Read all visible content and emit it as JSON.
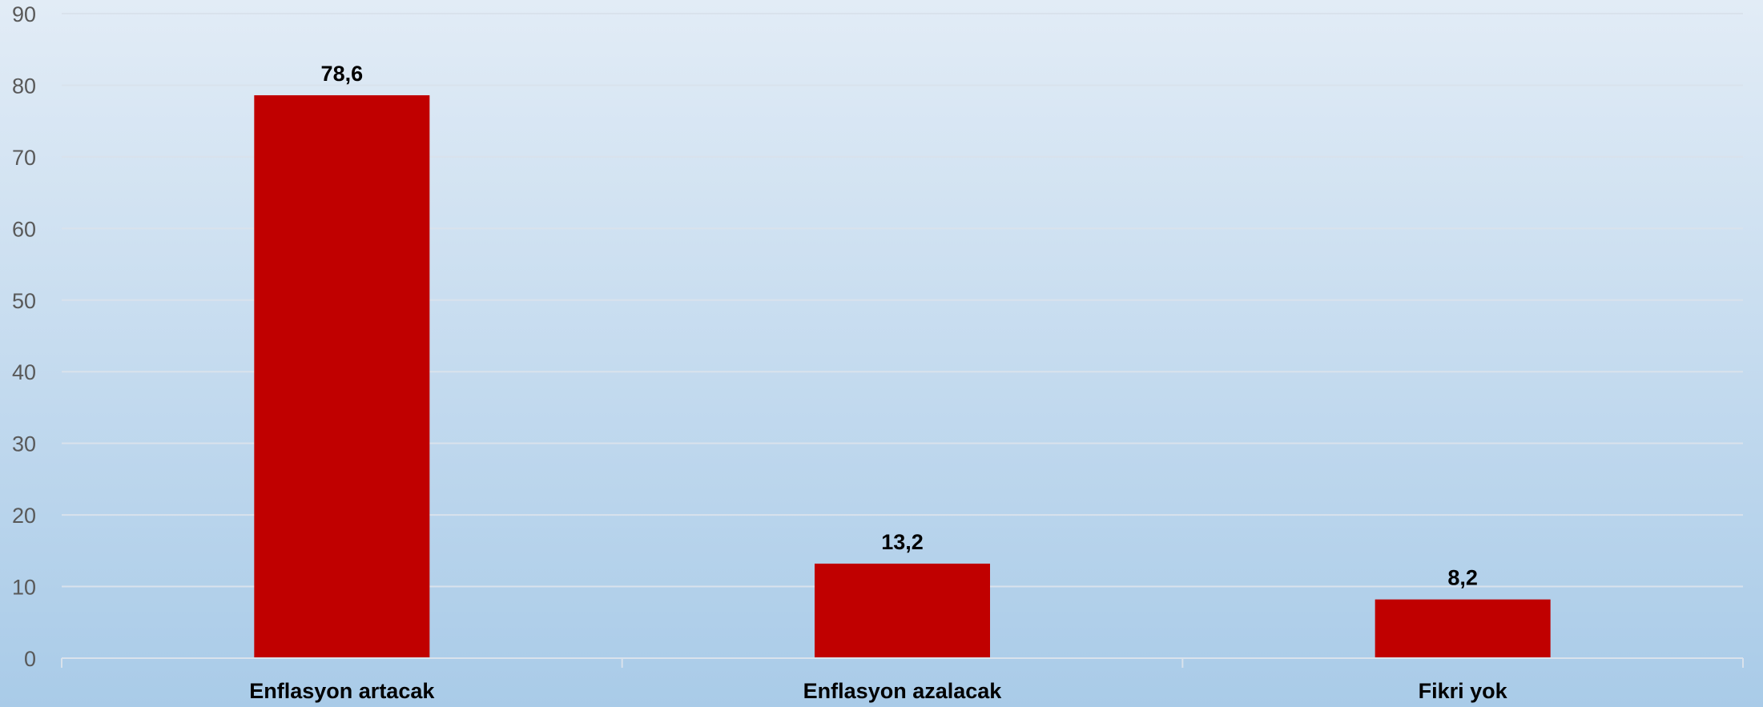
{
  "chart_data": {
    "type": "bar",
    "categories": [
      "Enflasyon artacak",
      "Enflasyon azalacak",
      "Fikri yok"
    ],
    "values": [
      78.6,
      13.2,
      8.2
    ],
    "value_labels": [
      "78,6",
      "13,2",
      "8,2"
    ],
    "title": "",
    "xlabel": "",
    "ylabel": "",
    "ylim": [
      0,
      90
    ],
    "yticks": [
      0,
      10,
      20,
      30,
      40,
      50,
      60,
      70,
      80,
      90
    ],
    "grid": true,
    "legend": "none",
    "bar_color": "#c00000",
    "grid_color": "#d9e2ec"
  }
}
